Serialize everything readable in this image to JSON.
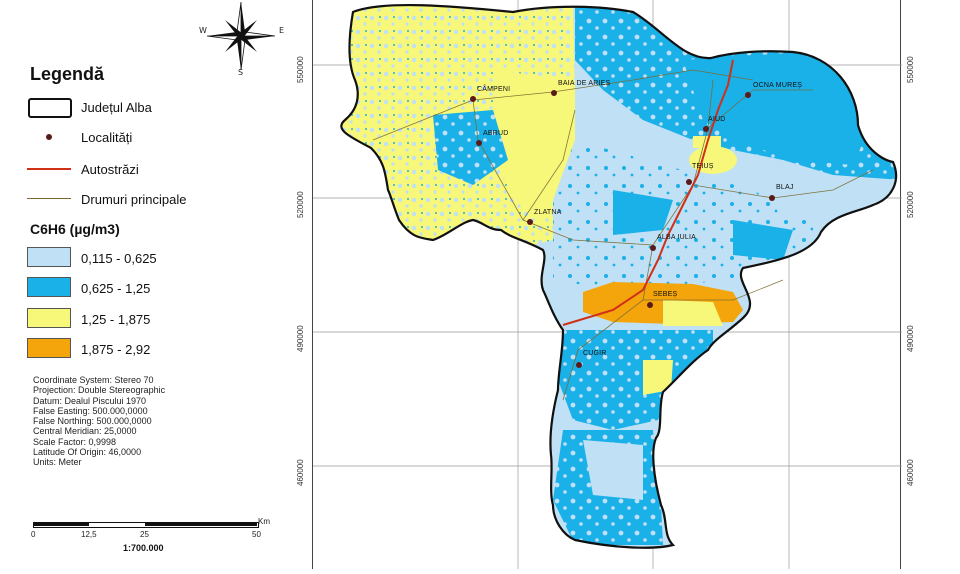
{
  "compass": {
    "north": "",
    "west": "W",
    "east": "E",
    "south": "S"
  },
  "legend": {
    "title": "Legendă",
    "items": [
      {
        "label": "Județul Alba",
        "symbol": "boundary"
      },
      {
        "label": "Localități",
        "symbol": "point"
      },
      {
        "label": "Autostrăzi",
        "symbol": "motorway"
      },
      {
        "label": "Drumuri principale",
        "symbol": "road"
      }
    ],
    "classes_title": "C6H6 (µg/m3)",
    "classes": [
      {
        "label": "0,115 - 0,625",
        "color": "#bfe0f5"
      },
      {
        "label": "0,625 - 1,25",
        "color": "#1ab0e8"
      },
      {
        "label": "1,25 - 1,875",
        "color": "#f7f77a"
      },
      {
        "label": "1,875 - 2,92",
        "color": "#f5a50c"
      }
    ]
  },
  "metadata": [
    "Coordinate System: Stereo 70",
    "Projection: Double Stereographic",
    "Datum: Dealul Piscului 1970",
    "False Easting: 500.000,0000",
    "False Northing: 500.000,0000",
    "Central Meridian: 25,0000",
    "Scale Factor: 0,9998",
    "Latitude Of Origin: 46,0000",
    "Units: Meter"
  ],
  "scale": {
    "unit": "Km",
    "ticks": [
      "0",
      "12,5",
      "25",
      "50"
    ],
    "ratio": "1:700.000"
  },
  "grid_labels": {
    "left": [
      "550000",
      "520000",
      "490000",
      "460000"
    ],
    "right": [
      "550000",
      "520000",
      "490000",
      "460000"
    ]
  },
  "colors": {
    "low": "#bfe0f5",
    "medium": "#1ab0e8",
    "high": "#f7f77a",
    "very_high": "#f5a50c",
    "boundary": "#111111",
    "motorway": "#d03018",
    "road": "#7a6a30",
    "settlement": "#5a1a1a"
  },
  "localities": [
    "CÂMPENI",
    "BAIA DE ARIEȘ",
    "OCNA MUREȘ",
    "ABRUD",
    "AIUD",
    "TEIUȘ",
    "BLAJ",
    "ZLATNA",
    "ALBA IULIA",
    "SEBEȘ",
    "CUGIR"
  ]
}
